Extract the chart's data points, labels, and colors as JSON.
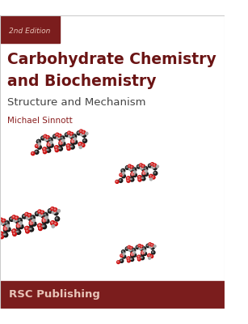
{
  "bg_color": "#ffffff",
  "dark_red": "#7b1d1d",
  "edition_box_color": "#7b1d1d",
  "edition_text": "2nd Edition",
  "edition_text_color": "#e8c4b8",
  "title_line1": "Carbohydrate Chemistry",
  "title_line2": "and Biochemistry",
  "subtitle": "Structure and Mechanism",
  "author": "Michael Sinnott",
  "publisher": "RSC Publishing",
  "title_color": "#6b1414",
  "subtitle_color": "#444444",
  "author_color": "#8b2020",
  "publisher_color": "#e8c4b8",
  "footer_color": "#7b1d1d",
  "figsize": [
    3.07,
    4.0
  ],
  "dpi": 100,
  "carbon_color": "#1a1a1a",
  "oxygen_color": "#cc1111",
  "hydrogen_color": "#aaaaaa",
  "bond_color": "#333333"
}
